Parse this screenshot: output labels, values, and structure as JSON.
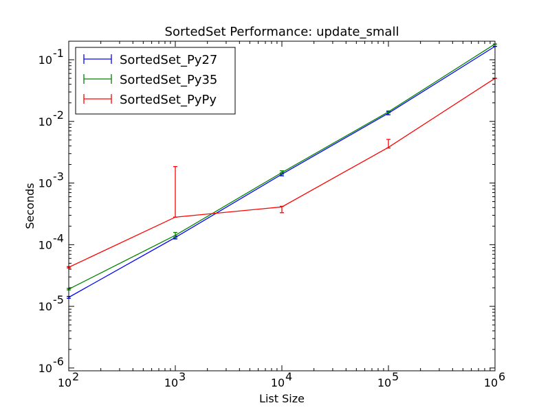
{
  "chart_data": {
    "type": "line",
    "title": "SortedSet Performance: update_small",
    "xlabel": "List Size",
    "ylabel": "Seconds",
    "xscale": "log",
    "yscale": "log",
    "xlim": [
      100,
      1000000
    ],
    "ylim": [
      9e-07,
      0.2
    ],
    "x_ticks": [
      {
        "value": 100,
        "base": "10",
        "exp": "2"
      },
      {
        "value": 1000,
        "base": "10",
        "exp": "3"
      },
      {
        "value": 10000,
        "base": "10",
        "exp": "4"
      },
      {
        "value": 100000,
        "base": "10",
        "exp": "5"
      },
      {
        "value": 1000000,
        "base": "10",
        "exp": "6"
      }
    ],
    "y_ticks": [
      {
        "value": 1e-06,
        "base": "10",
        "exp": "-6"
      },
      {
        "value": 1e-05,
        "base": "10",
        "exp": "-5"
      },
      {
        "value": 0.0001,
        "base": "10",
        "exp": "-4"
      },
      {
        "value": 0.001,
        "base": "10",
        "exp": "-3"
      },
      {
        "value": 0.01,
        "base": "10",
        "exp": "-2"
      },
      {
        "value": 0.1,
        "base": "10",
        "exp": "-1"
      }
    ],
    "grid": false,
    "legend": "top-left",
    "x": [
      100,
      1000,
      10000,
      100000,
      1000000
    ],
    "series": [
      {
        "name": "SortedSet_Py27",
        "color": "#0000ff",
        "values": [
          1.4e-05,
          0.000131,
          0.00139,
          0.0136,
          0.165
        ],
        "err_low": [
          1.35e-05,
          0.000124,
          0.00131,
          0.0128,
          0.165
        ],
        "err_high": [
          1.45e-05,
          0.000138,
          0.00146,
          0.0145,
          0.165
        ]
      },
      {
        "name": "SortedSet_Py35",
        "color": "#008000",
        "values": [
          1.9e-05,
          0.000142,
          0.00148,
          0.0143,
          0.18
        ],
        "err_low": [
          1.85e-05,
          0.000131,
          0.00139,
          0.0138,
          0.18
        ],
        "err_high": [
          1.95e-05,
          0.000158,
          0.00158,
          0.0148,
          0.18
        ]
      },
      {
        "name": "SortedSet_PyPy",
        "color": "#ff0000",
        "values": [
          4.3e-05,
          0.00028,
          0.00041,
          0.0038,
          0.05
        ],
        "err_low": [
          4.2e-05,
          0.00028,
          0.00033,
          0.0037,
          0.05
        ],
        "err_high": [
          4.4e-05,
          0.00185,
          0.00042,
          0.0051,
          0.05
        ]
      }
    ]
  }
}
